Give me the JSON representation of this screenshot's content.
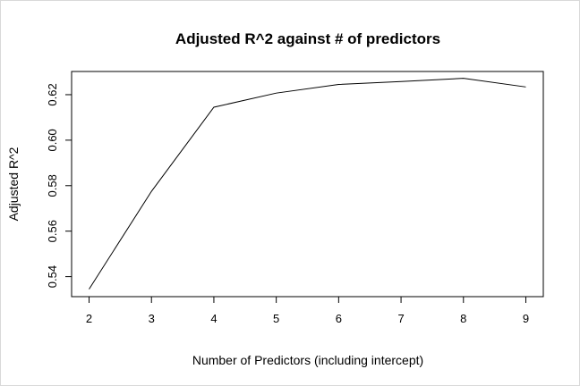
{
  "chart_data": {
    "type": "line",
    "title": "Adjusted R^2 against # of predictors",
    "xlabel": "Number of Predictors (including intercept)",
    "ylabel": "Adjusted R^2",
    "x": [
      2,
      3,
      4,
      5,
      6,
      7,
      8,
      9
    ],
    "y": [
      0.5345,
      0.5775,
      0.6145,
      0.6207,
      0.6245,
      0.6258,
      0.6272,
      0.6234
    ],
    "xticks": [
      2,
      3,
      4,
      5,
      6,
      7,
      8,
      9
    ],
    "yticks": [
      "0.54",
      "0.56",
      "0.58",
      "0.60",
      "0.62"
    ],
    "xlim": [
      1.72,
      9.28
    ],
    "ylim": [
      0.5312,
      0.6302
    ],
    "grid": false,
    "legend": "none",
    "line_color": "#000000"
  }
}
